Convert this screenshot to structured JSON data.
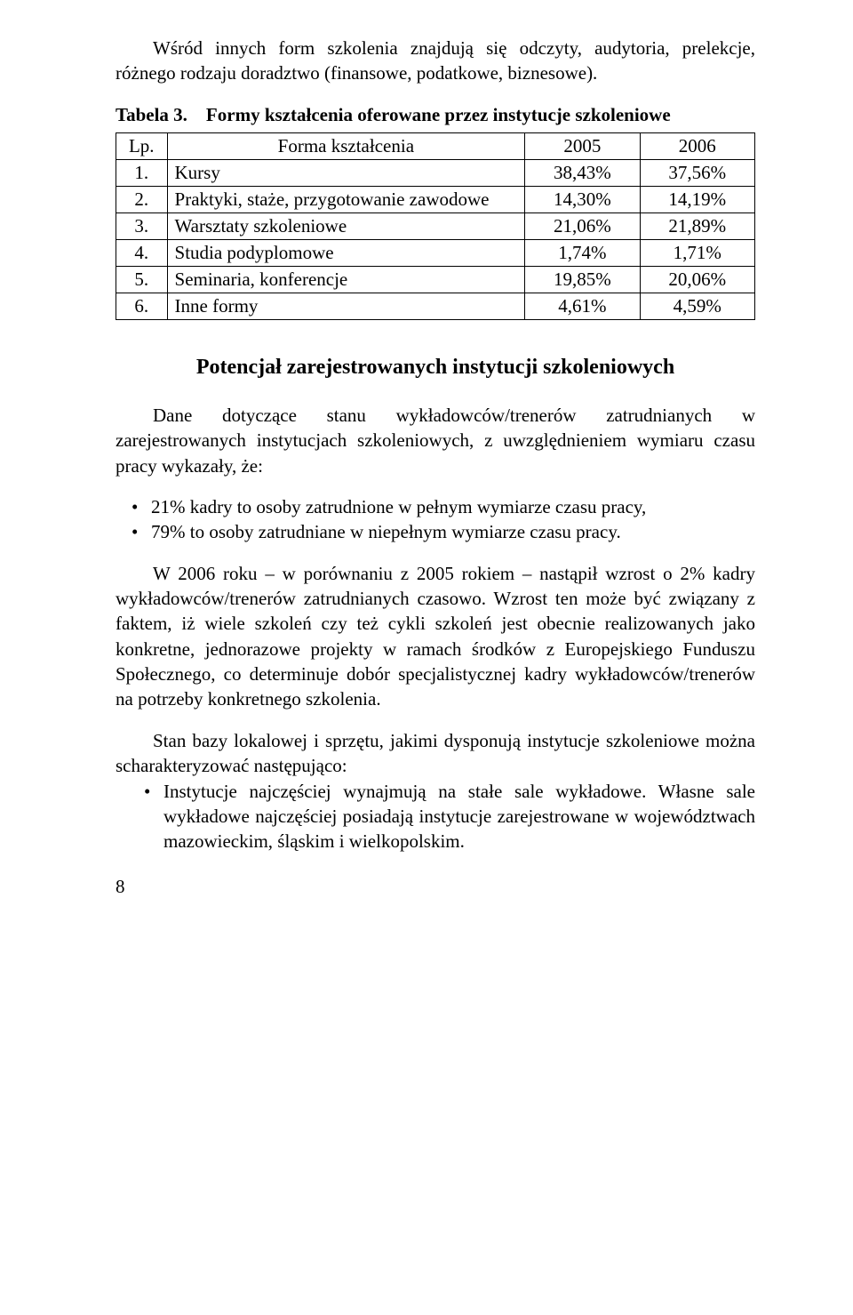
{
  "intro_para": "Wśród innych form szkolenia znajdują się odczyty, audytoria, prelekcje, różnego rodzaju doradztwo (finansowe, podatkowe, biznesowe).",
  "table_label": "Tabela 3.",
  "table_title": "Formy kształcenia oferowane przez instytucje szkoleniowe",
  "table": {
    "headers": {
      "lp": "Lp.",
      "name": "Forma kształcenia",
      "c1": "2005",
      "c2": "2006"
    },
    "rows": [
      {
        "lp": "1.",
        "name": "Kursy",
        "c1": "38,43%",
        "c2": "37,56%"
      },
      {
        "lp": "2.",
        "name": "Praktyki, staże, przygotowanie zawodowe",
        "c1": "14,30%",
        "c2": "14,19%"
      },
      {
        "lp": "3.",
        "name": "Warsztaty szkoleniowe",
        "c1": "21,06%",
        "c2": "21,89%"
      },
      {
        "lp": "4.",
        "name": "Studia podyplomowe",
        "c1": "1,74%",
        "c2": "1,71%"
      },
      {
        "lp": "5.",
        "name": "Seminaria, konferencje",
        "c1": "19,85%",
        "c2": "20,06%"
      },
      {
        "lp": "6.",
        "name": "Inne formy",
        "c1": "4,61%",
        "c2": "4,59%"
      }
    ]
  },
  "section_heading": "Potencjał zarejestrowanych instytucji szkoleniowych",
  "section_para1": "Dane dotyczące stanu wykładowców/trenerów zatrudnianych w zarejestrowanych instytucjach szkoleniowych, z uwzględnieniem wymiaru czasu pracy wykazały, że:",
  "section_bullets1": [
    "21% kadry to osoby zatrudnione w pełnym wymiarze czasu pracy,",
    "79% to osoby zatrudniane w niepełnym wymiarze czasu pracy."
  ],
  "section_para2": "W 2006 roku – w porównaniu z 2005 rokiem – nastąpił wzrost o 2% kadry wykładowców/trenerów zatrudnianych czasowo. Wzrost ten może być związany z faktem, iż wiele szkoleń czy też cykli szkoleń jest obecnie realizowanych jako konkretne, jednorazowe projekty w ramach środków z Europejskiego Funduszu Społecznego, co determinuje dobór specjalistycznej kadry wykładowców/trenerów na potrzeby konkretnego szkolenia.",
  "section_para3": "Stan bazy lokalowej i sprzętu, jakimi dysponują instytucje szkoleniowe można scharakteryzować następująco:",
  "section_bullets2": [
    "Instytucje najczęściej wynajmują na stałe sale wykładowe. Własne sale wykładowe najczęściej posiadają instytucje zarejestrowane w województwach mazowieckim, śląskim i wielkopolskim."
  ],
  "page_number": "8"
}
